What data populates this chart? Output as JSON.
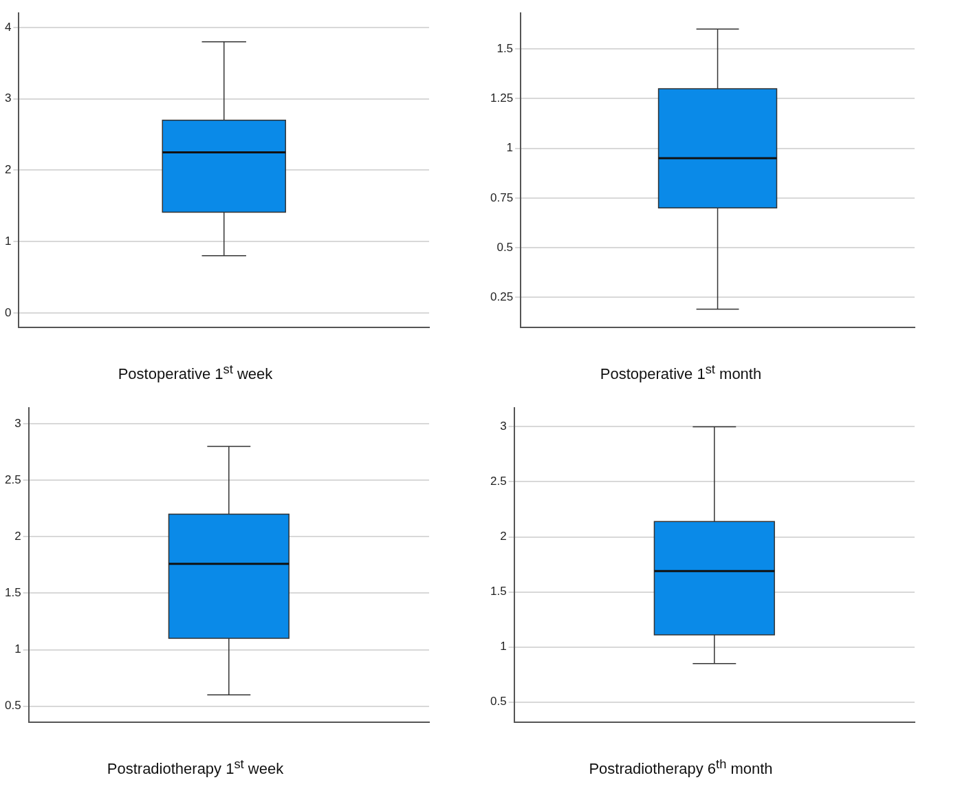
{
  "chart_data": [
    {
      "type": "box",
      "xlabel": "Postoperative 1$^{st}$ week",
      "categories": [
        null
      ],
      "color": "#0a8ae8",
      "boxes": [
        {
          "low": 0.8,
          "q1": 1.41,
          "median": 2.25,
          "q3": 2.7,
          "high": 3.8
        }
      ],
      "ylim": [
        -0.2,
        4.2
      ],
      "yticks": [
        0,
        1,
        2,
        3,
        4
      ],
      "grid": "y"
    },
    {
      "type": "box",
      "xlabel": "Postoperative 1$^{st}$ month",
      "categories": [
        null
      ],
      "color": "#0a8ae8",
      "boxes": [
        {
          "low": 0.19,
          "q1": 0.7,
          "median": 0.95,
          "q3": 1.3,
          "high": 1.6
        }
      ],
      "ylim": [
        0.1,
        1.68
      ],
      "yticks": [
        0.25,
        0.5,
        0.75,
        1,
        1.25,
        1.5
      ],
      "grid": "y"
    },
    {
      "type": "box",
      "xlabel": "Postradiotherapy 1$^{st}$ week",
      "categories": [
        null
      ],
      "color": "#0a8ae8",
      "boxes": [
        {
          "low": 0.6,
          "q1": 1.1,
          "median": 1.76,
          "q3": 2.2,
          "high": 2.8
        }
      ],
      "ylim": [
        0.36,
        3.14
      ],
      "yticks": [
        0.5,
        1,
        1.5,
        2,
        2.5,
        3
      ],
      "grid": "y"
    },
    {
      "type": "box",
      "xlabel": "Postradiotherapy 6$^{th}$ month",
      "categories": [
        null
      ],
      "color": "#0a8ae8",
      "boxes": [
        {
          "low": 0.85,
          "q1": 1.11,
          "median": 1.69,
          "q3": 2.14,
          "high": 3
        }
      ],
      "ylim": [
        0.32,
        3.17
      ],
      "yticks": [
        0.5,
        1,
        1.5,
        2,
        2.5,
        3
      ],
      "grid": "y"
    }
  ]
}
